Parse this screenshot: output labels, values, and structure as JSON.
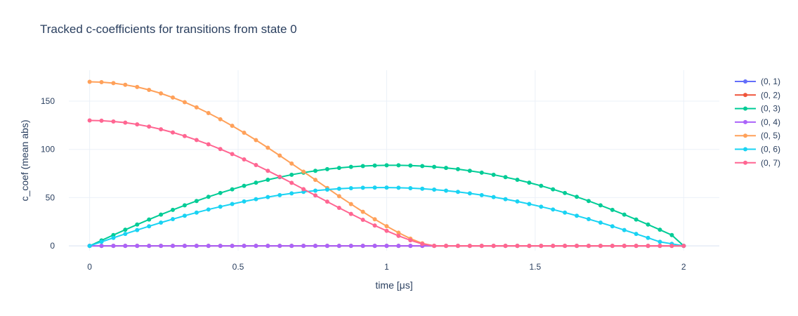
{
  "chart_data": {
    "type": "line",
    "title": "Tracked c-coefficients for transitions from state 0",
    "xlabel": "time [μs]",
    "ylabel": "c_coef (mean abs)",
    "xlim": [
      -0.07,
      2.12
    ],
    "ylim": [
      -5,
      182
    ],
    "x_ticks": [
      0,
      0.5,
      1,
      1.5,
      2
    ],
    "x_tick_labels": [
      "0",
      "0.5",
      "1",
      "1.5",
      "2"
    ],
    "y_ticks": [
      0,
      50,
      100,
      150
    ],
    "y_tick_labels": [
      "0",
      "50",
      "100",
      "150"
    ],
    "grid": true,
    "legend_position": "top-right",
    "x": [
      0,
      0.04,
      0.08,
      0.12,
      0.16,
      0.2,
      0.24,
      0.28,
      0.32,
      0.36,
      0.4,
      0.44,
      0.48,
      0.52,
      0.56,
      0.6,
      0.64,
      0.68,
      0.72,
      0.76,
      0.8,
      0.84,
      0.88,
      0.92,
      0.96,
      1.0,
      1.04,
      1.08,
      1.12,
      1.16,
      1.2,
      1.24,
      1.28,
      1.32,
      1.36,
      1.4,
      1.44,
      1.48,
      1.52,
      1.56,
      1.6,
      1.64,
      1.68,
      1.72,
      1.76,
      1.8,
      1.84,
      1.88,
      1.92,
      1.96,
      2.0
    ],
    "series": [
      {
        "name": "(0, 1)",
        "color": "#636efa",
        "values": [
          0,
          0,
          0,
          0,
          0,
          0,
          0,
          0,
          0,
          0,
          0,
          0,
          0,
          0,
          0,
          0,
          0,
          0,
          0,
          0,
          0,
          0,
          0,
          0,
          0,
          0,
          0,
          0,
          0,
          0,
          0,
          0,
          0,
          0,
          0,
          0,
          0,
          0,
          0,
          0,
          0,
          0,
          0,
          0,
          0,
          0,
          0,
          0,
          0,
          0,
          0
        ]
      },
      {
        "name": "(0, 2)",
        "color": "#EF553B",
        "values": [
          0,
          0,
          0,
          0,
          0,
          0,
          0,
          0,
          0,
          0,
          0,
          0,
          0,
          0,
          0,
          0,
          0,
          0,
          0,
          0,
          0,
          0,
          0,
          0,
          0,
          0,
          0,
          0,
          0,
          0,
          0,
          0,
          0,
          0,
          0,
          0,
          0,
          0,
          0,
          0,
          0,
          0,
          0,
          0,
          0,
          0,
          0,
          0,
          0,
          0,
          0
        ]
      },
      {
        "name": "(0, 3)",
        "color": "#00cc96",
        "values": [
          0,
          5.6,
          11.2,
          16.7,
          22.1,
          27.3,
          32.4,
          37.3,
          42,
          46.5,
          50.8,
          54.8,
          58.6,
          62.2,
          65.5,
          68.5,
          71.2,
          73.7,
          75.9,
          77.8,
          79.5,
          80.8,
          81.9,
          82.7,
          83.2,
          83.5,
          83.5,
          83.2,
          82.7,
          81.9,
          80.8,
          79.5,
          77.8,
          75.9,
          73.7,
          71.2,
          68.5,
          65.5,
          62.2,
          58.6,
          54.8,
          50.8,
          46.5,
          42,
          37.3,
          32.4,
          27.3,
          22.1,
          16.7,
          11.2,
          0
        ]
      },
      {
        "name": "(0, 4)",
        "color": "#ab63fa",
        "values": [
          0,
          0,
          0,
          0,
          0,
          0,
          0,
          0,
          0,
          0,
          0,
          0,
          0,
          0,
          0,
          0,
          0,
          0,
          0,
          0,
          0,
          0,
          0,
          0,
          0,
          0,
          0,
          0,
          0,
          0,
          0,
          0,
          0,
          0,
          0,
          0,
          0,
          0,
          0,
          0,
          0,
          0,
          0,
          0,
          0,
          0,
          0,
          0,
          0,
          0,
          0
        ]
      },
      {
        "name": "(0, 5)",
        "color": "#FFA15A",
        "values": [
          170,
          169.6,
          168.6,
          166.9,
          164.6,
          161.6,
          158,
          153.7,
          148.9,
          143.5,
          137.6,
          131.2,
          124.4,
          117.2,
          109.6,
          101.7,
          93.6,
          85.3,
          76.9,
          68.4,
          59.9,
          51.5,
          43.3,
          35.3,
          27.6,
          20.4,
          13.6,
          7.5,
          2.6,
          0,
          0,
          0,
          0,
          0,
          0,
          0,
          0,
          0,
          0,
          0,
          0,
          0,
          0,
          0,
          0,
          0,
          0,
          0,
          0,
          0,
          0
        ]
      },
      {
        "name": "(0, 6)",
        "color": "#19d3f3",
        "values": [
          0,
          4.2,
          8.3,
          12.4,
          16.4,
          20.3,
          24.1,
          27.7,
          31.2,
          34.5,
          37.7,
          40.6,
          43.4,
          46,
          48.4,
          50.6,
          52.6,
          54.4,
          55.9,
          57.2,
          58.3,
          59.2,
          59.8,
          60.2,
          60.4,
          60.4,
          60.2,
          59.8,
          59.2,
          58.3,
          57.2,
          55.9,
          54.4,
          52.6,
          50.6,
          48.4,
          46,
          43.4,
          40.6,
          37.7,
          34.5,
          31.2,
          27.7,
          24.1,
          20.3,
          16.4,
          12.4,
          8.3,
          4.2,
          2.1,
          0
        ]
      },
      {
        "name": "(0, 7)",
        "color": "#FF6692",
        "values": [
          130,
          129.7,
          128.9,
          127.7,
          125.9,
          123.6,
          120.8,
          117.5,
          113.8,
          109.7,
          105.2,
          100.3,
          95.1,
          89.6,
          83.8,
          77.8,
          71.6,
          65.3,
          58.8,
          52.3,
          45.8,
          39.4,
          33.1,
          27,
          21.1,
          15.6,
          10.4,
          5.8,
          2,
          0,
          0,
          0,
          0,
          0,
          0,
          0,
          0,
          0,
          0,
          0,
          0,
          0,
          0,
          0,
          0,
          0,
          0,
          0,
          0,
          0,
          0
        ]
      }
    ]
  }
}
